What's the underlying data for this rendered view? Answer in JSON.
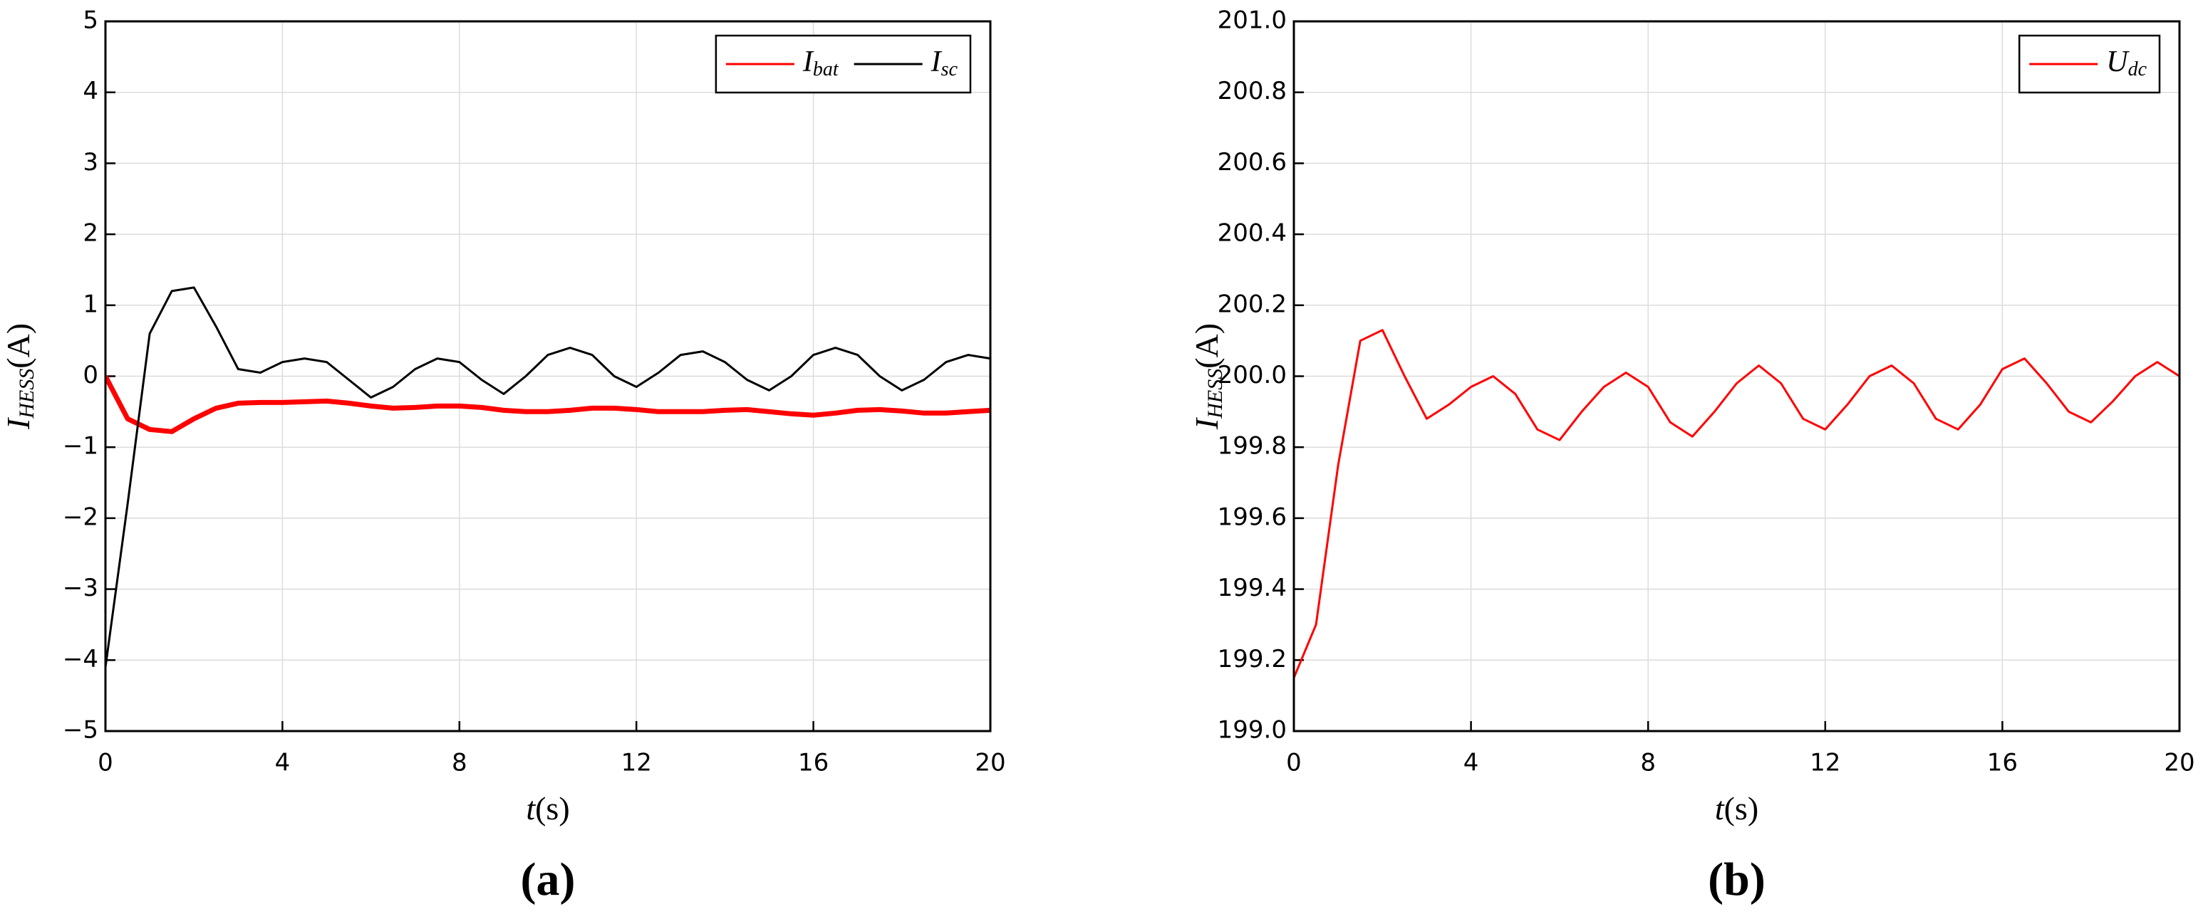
{
  "chart_data": [
    {
      "type": "line",
      "caption": "(a)",
      "xlabel": [
        "t",
        "(s)"
      ],
      "ylabel": [
        "I",
        "HESS",
        "(A)"
      ],
      "x": [
        0,
        0.5,
        1,
        1.5,
        2,
        2.5,
        3,
        3.5,
        4,
        4.5,
        5,
        5.5,
        6,
        6.5,
        7,
        7.5,
        8,
        8.5,
        9,
        9.5,
        10,
        10.5,
        11,
        11.5,
        12,
        12.5,
        13,
        13.5,
        14,
        14.5,
        15,
        15.5,
        16,
        16.5,
        17,
        17.5,
        18,
        18.5,
        19,
        19.5,
        20
      ],
      "series": [
        {
          "name": [
            "I",
            "bat"
          ],
          "color": "#ff0000",
          "values": [
            0,
            -0.6,
            -0.75,
            -0.78,
            -0.6,
            -0.45,
            -0.38,
            -0.37,
            -0.37,
            -0.36,
            -0.35,
            -0.38,
            -0.42,
            -0.45,
            -0.44,
            -0.42,
            -0.42,
            -0.44,
            -0.48,
            -0.5,
            -0.5,
            -0.48,
            -0.45,
            -0.45,
            -0.47,
            -0.5,
            -0.5,
            -0.5,
            -0.48,
            -0.47,
            -0.5,
            -0.53,
            -0.55,
            -0.52,
            -0.48,
            -0.47,
            -0.49,
            -0.52,
            -0.52,
            -0.5,
            -0.48
          ]
        },
        {
          "name": [
            "I",
            "sc"
          ],
          "color": "#000000",
          "values": [
            -4.1,
            -1.8,
            0.6,
            1.2,
            1.25,
            0.7,
            0.1,
            0.05,
            0.2,
            0.25,
            0.2,
            -0.05,
            -0.3,
            -0.15,
            0.1,
            0.25,
            0.2,
            -0.05,
            -0.25,
            0,
            0.3,
            0.4,
            0.3,
            0,
            -0.15,
            0.05,
            0.3,
            0.35,
            0.2,
            -0.05,
            -0.2,
            0,
            0.3,
            0.4,
            0.3,
            0,
            -0.2,
            -0.05,
            0.2,
            0.3,
            0.25
          ]
        }
      ],
      "xlim": [
        0,
        20
      ],
      "xticks": [
        0,
        4,
        8,
        12,
        16,
        20
      ],
      "ylim": [
        -5,
        5
      ],
      "yticks": [
        {
          "value": -5,
          "label": "−5"
        },
        {
          "value": -4,
          "label": "−4"
        },
        {
          "value": -3,
          "label": "−3"
        },
        {
          "value": -2,
          "label": "−2"
        },
        {
          "value": -1,
          "label": "−1"
        },
        0,
        1,
        2,
        3,
        4,
        5
      ],
      "grid": true,
      "legend": "upper right"
    },
    {
      "type": "line",
      "caption": "(b)",
      "xlabel": [
        "t",
        "(s)"
      ],
      "ylabel": [
        "I",
        "HESS",
        "(A)"
      ],
      "x": [
        0,
        0.5,
        1,
        1.5,
        2,
        2.5,
        3,
        3.5,
        4,
        4.5,
        5,
        5.5,
        6,
        6.5,
        7,
        7.5,
        8,
        8.5,
        9,
        9.5,
        10,
        10.5,
        11,
        11.5,
        12,
        12.5,
        13,
        13.5,
        14,
        14.5,
        15,
        15.5,
        16,
        16.5,
        17,
        17.5,
        18,
        18.5,
        19,
        19.5,
        20
      ],
      "series": [
        {
          "name": [
            "U",
            "dc"
          ],
          "color": "#ff0000",
          "values": [
            199.15,
            199.3,
            199.75,
            200.1,
            200.13,
            200.0,
            199.88,
            199.92,
            199.97,
            200.0,
            199.95,
            199.85,
            199.82,
            199.9,
            199.97,
            200.01,
            199.97,
            199.87,
            199.83,
            199.9,
            199.98,
            200.03,
            199.98,
            199.88,
            199.85,
            199.92,
            200.0,
            200.03,
            199.98,
            199.88,
            199.85,
            199.92,
            200.02,
            200.05,
            199.98,
            199.9,
            199.87,
            199.93,
            200.0,
            200.04,
            200.0
          ]
        }
      ],
      "xlim": [
        0,
        20
      ],
      "xticks": [
        0,
        4,
        8,
        12,
        16,
        20
      ],
      "ylim": [
        199,
        201
      ],
      "yticks": [
        {
          "value": 199,
          "label": "199.0"
        },
        199.2,
        199.4,
        199.6,
        199.8,
        {
          "value": 200,
          "label": "200.0"
        },
        200.2,
        200.4,
        200.6,
        200.8,
        {
          "value": 201,
          "label": "201.0"
        }
      ],
      "grid": true,
      "legend": "upper right"
    }
  ]
}
